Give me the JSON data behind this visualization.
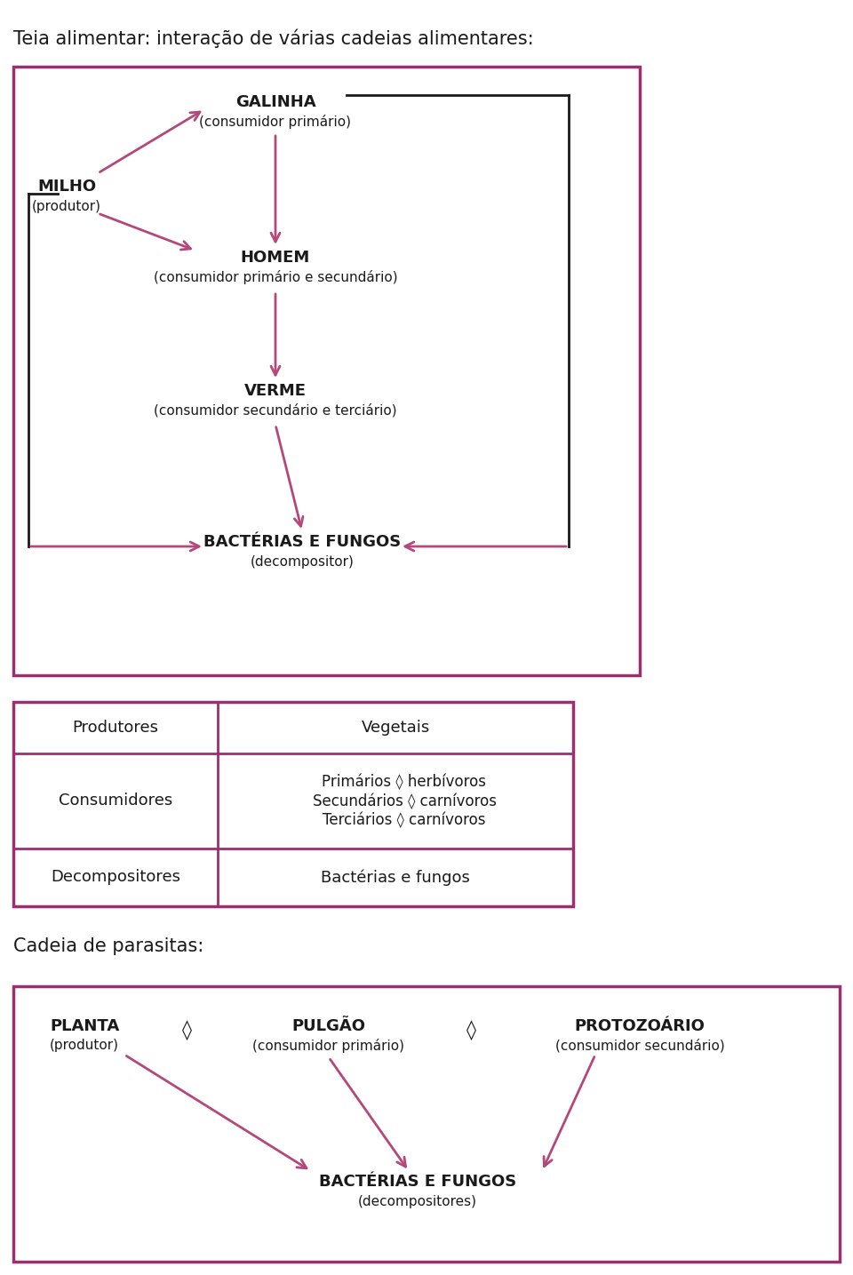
{
  "bg_color": "#ffffff",
  "border_color": "#9b3070",
  "arrow_color": "#b5477a",
  "line_color": "#1a1a1a",
  "text_color": "#1a1a1a",
  "title1": "Teia alimentar: interação de várias cadeias alimentares:",
  "title2": "Cadeia de parasitas:",
  "table_rows": [
    {
      "col1": "Produtores",
      "col2": "Vegetais"
    },
    {
      "col1": "Consumidores",
      "col2": "Primários ◊ herbívoros\nSecundários ◊ carnívoros\nTerciários ◊ carnívoros"
    },
    {
      "col1": "Decompositores",
      "col2": "Bactérias e fungos"
    }
  ]
}
